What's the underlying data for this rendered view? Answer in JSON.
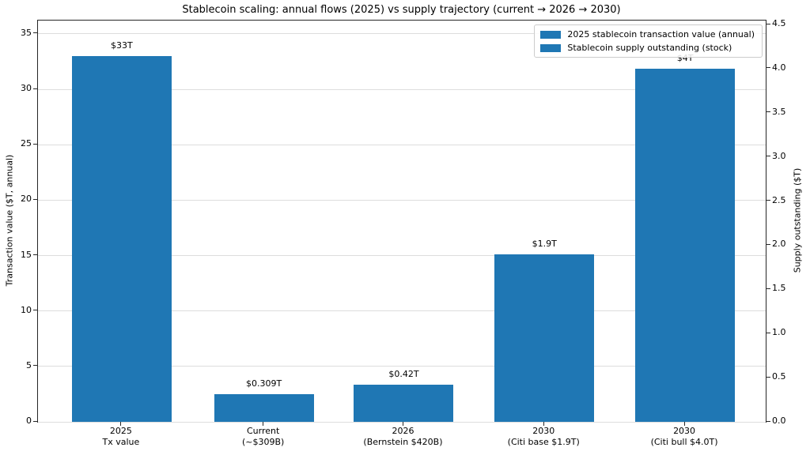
{
  "chart_data": {
    "type": "bar",
    "title": "Stablecoin scaling: annual flows (2025) vs supply trajectory (current → 2026 → 2030)",
    "grid": true,
    "legend_position": "upper right",
    "colors": {
      "bar": "#1f77b4",
      "grid": "#dddddd",
      "background": "#ffffff",
      "text": "#000000"
    },
    "legend": {
      "entries": [
        {
          "label": "2025 stablecoin transaction value (annual)",
          "color": "#1f77b4"
        },
        {
          "label": "Stablecoin supply outstanding (stock)",
          "color": "#1f77b4"
        }
      ]
    },
    "left_axis": {
      "label": "Transaction value ($T, annual)",
      "ticks": [
        0,
        5,
        10,
        15,
        20,
        25,
        30,
        35
      ],
      "range": [
        0,
        36.21
      ]
    },
    "right_axis": {
      "label": "Supply outstanding ($T)",
      "ticks": [
        "0.0",
        "0.5",
        "1.0",
        "1.5",
        "2.0",
        "2.5",
        "3.0",
        "3.5",
        "4.0",
        "4.5"
      ],
      "range": [
        0,
        4.545
      ]
    },
    "categories": [
      [
        "2025",
        "Tx value"
      ],
      [
        "Current",
        "(~$309B)"
      ],
      [
        "2026",
        "(Bernstein $420B)"
      ],
      [
        "2030",
        "(Citi base $1.9T)"
      ],
      [
        "2030",
        "(Citi bull $4.0T)"
      ]
    ],
    "bars": [
      {
        "category": "2025 Tx value",
        "series": "2025 stablecoin transaction value (annual)",
        "axis": "left",
        "value_trillions": 33,
        "label": "$33T"
      },
      {
        "category": "Current (~$309B)",
        "series": "Stablecoin supply outstanding (stock)",
        "axis": "right",
        "value_trillions": 0.309,
        "label": "$0.309T"
      },
      {
        "category": "2026 (Bernstein $420B)",
        "series": "Stablecoin supply outstanding (stock)",
        "axis": "right",
        "value_trillions": 0.42,
        "label": "$0.42T"
      },
      {
        "category": "2030 (Citi base $1.9T)",
        "series": "Stablecoin supply outstanding (stock)",
        "axis": "right",
        "value_trillions": 1.9,
        "label": "$1.9T"
      },
      {
        "category": "2030 (Citi bull $4.0T)",
        "series": "Stablecoin supply outstanding (stock)",
        "axis": "right",
        "value_trillions": 4.0,
        "label": "$4T"
      }
    ]
  }
}
